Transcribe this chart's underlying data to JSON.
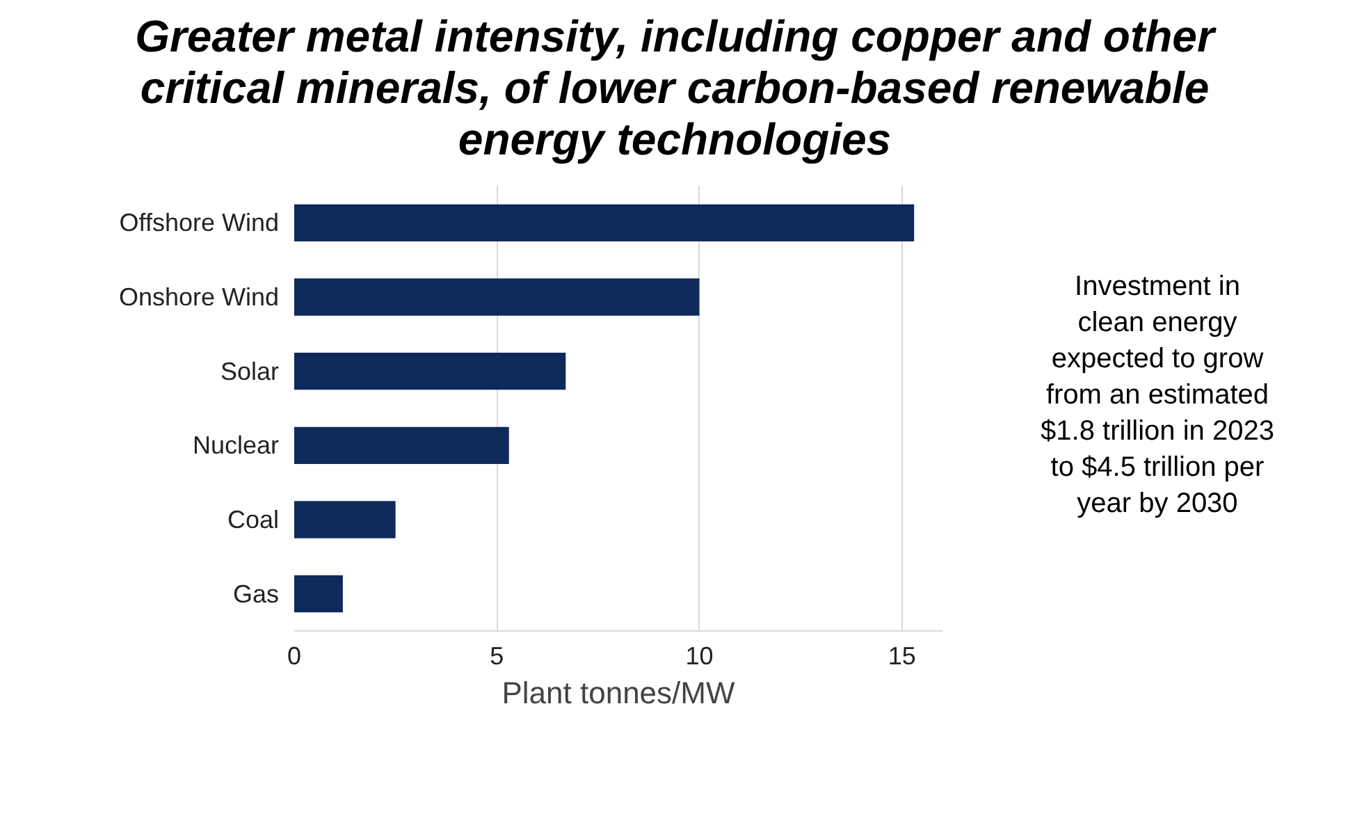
{
  "chart_data": {
    "type": "bar",
    "orientation": "horizontal",
    "title": "Greater metal intensity, including copper and other\ncritical minerals, of lower carbon-based renewable\nenergy technologies",
    "categories": [
      "Offshore Wind",
      "Onshore Wind",
      "Solar",
      "Nuclear",
      "Coal",
      "Gas"
    ],
    "values": [
      15.3,
      10.0,
      6.7,
      5.3,
      2.5,
      1.2
    ],
    "color": "#0e2a5c",
    "xlim": [
      0,
      16
    ],
    "xticks": [
      0,
      5,
      10,
      15
    ],
    "grid": "x",
    "xlabel": "Plant tonnes/MW",
    "annotations": [
      "Investment in\nclean energy\nexpected to grow\nfrom an estimated\n$1.8 trillion in 2023\nto $4.5 trillion per\nyear by 2030"
    ]
  }
}
